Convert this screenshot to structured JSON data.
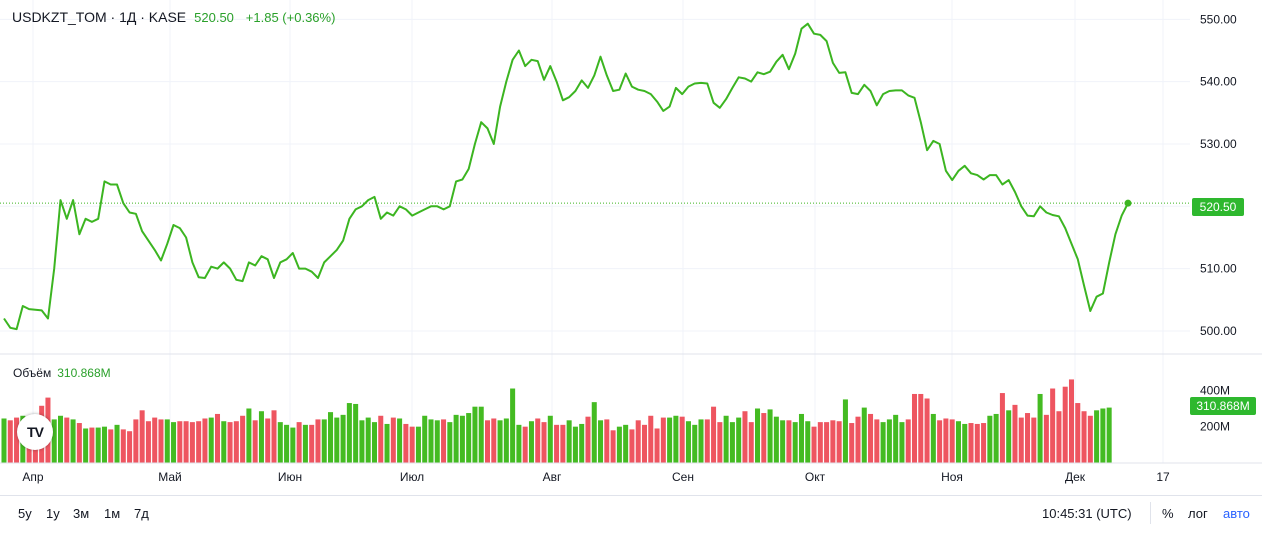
{
  "header": {
    "symbol": "USDKZT_TOM · 1Д · KASE",
    "last": "520.50",
    "change": "+1.85 (+0.36%)"
  },
  "volume_header": {
    "label": "Объём",
    "value": "310.868M"
  },
  "price_tag": "520.50",
  "volume_tag": "310.868M",
  "logo_text": "TV",
  "toolbar": {
    "ranges": [
      "5y",
      "1y",
      "3м",
      "1м",
      "7д"
    ],
    "time": "10:45:31 (UTC)",
    "percent": "%",
    "log": "лог",
    "auto": "авто"
  },
  "colors": {
    "line": "#3cb521",
    "up": "#44bb22",
    "down": "#ee5560",
    "grid": "#f0f3fa"
  },
  "chart_data": [
    {
      "type": "line",
      "title": "USDKZT_TOM · 1Д · KASE",
      "x_ticks": [
        "Апр",
        "Май",
        "Июн",
        "Июл",
        "Авг",
        "Сен",
        "Окт",
        "Ноя",
        "Дек",
        "17"
      ],
      "y_ticks": [
        "550.00",
        "540.00",
        "530.00",
        "520.00",
        "510.00",
        "500.00"
      ],
      "ylim": [
        496.3,
        553.1
      ],
      "series": [
        {
          "values": [
            502,
            500.5,
            500.3,
            504,
            503.5,
            503.4,
            503.3,
            502,
            510,
            521,
            518,
            521,
            515.5,
            518,
            517.5,
            518,
            524,
            523.5,
            523.5,
            520.5,
            519,
            518.8,
            516,
            514.5,
            513,
            511.3,
            514,
            517,
            516.5,
            515,
            511,
            508.6,
            508.5,
            510.3,
            510,
            511,
            510,
            508.2,
            508,
            511,
            510.5,
            512,
            511.5,
            508.5,
            511,
            511.5,
            512.5,
            510,
            510,
            509.5,
            508.5,
            511,
            512,
            513,
            514.5,
            518,
            519.5,
            520,
            521,
            521.5,
            518,
            519,
            518.5,
            520,
            519.5,
            518.5,
            519,
            519.5,
            520,
            520,
            519.5,
            520,
            524,
            524.3,
            526,
            530,
            533.5,
            532.5,
            530,
            536,
            540,
            543.5,
            545,
            542.5,
            543.5,
            543.3,
            540.3,
            542.5,
            540,
            537,
            537.5,
            538.5,
            540.2,
            539,
            541,
            544,
            541,
            538.5,
            538.7,
            541.3,
            539.2,
            538.7,
            538.5,
            538,
            536.8,
            535.3,
            536,
            539,
            538,
            539.2,
            539.7,
            539.8,
            539.7,
            536.6,
            535.8,
            537.2,
            539,
            540.7,
            540.5,
            540,
            541.5,
            541.2,
            541.6,
            543.2,
            544.3,
            542,
            544.5,
            548.5,
            549.3,
            547.7,
            547.5,
            546.5,
            543,
            541.4,
            541.5,
            538.2,
            538,
            539.5,
            538.5,
            536.2,
            538,
            538.5,
            538.6,
            538.6,
            537.8,
            537.4,
            533.5,
            529,
            530.5,
            530,
            525.7,
            524.2,
            525.7,
            526.5,
            525.3,
            525,
            524.3,
            525,
            525,
            523.5,
            524.2,
            522.3,
            520,
            518.5,
            518.4,
            520,
            519,
            518.6,
            518.4,
            516.5,
            514,
            511.5,
            507.3,
            503.2,
            505.5,
            506,
            511,
            515.5,
            518.5,
            520.5
          ]
        }
      ]
    },
    {
      "type": "bar",
      "title": "Объём",
      "y_ticks": [
        "400M",
        "200M"
      ],
      "ylim": [
        0,
        600
      ],
      "series": [
        {
          "values": [
            245,
            235,
            250,
            260,
            245,
            260,
            315,
            360,
            240,
            260,
            250,
            240,
            220,
            190,
            195,
            195,
            200,
            185,
            210,
            185,
            175,
            240,
            290,
            230,
            250,
            240,
            240,
            225,
            230,
            230,
            225,
            230,
            245,
            250,
            270,
            230,
            225,
            230,
            260,
            300,
            235,
            285,
            245,
            290,
            225,
            210,
            195,
            225,
            210,
            210,
            240,
            240,
            280,
            250,
            265,
            330,
            325,
            235,
            250,
            225,
            260,
            215,
            250,
            245,
            215,
            200,
            200,
            260,
            240,
            235,
            240,
            225,
            265,
            260,
            275,
            310,
            310,
            235,
            245,
            235,
            245,
            410,
            210,
            200,
            230,
            245,
            225,
            260,
            210,
            210,
            235,
            200,
            215,
            255,
            335,
            235,
            240,
            180,
            200,
            210,
            185,
            235,
            210,
            260,
            190,
            250,
            250,
            260,
            255,
            230,
            210,
            240,
            240,
            310,
            225,
            260,
            225,
            250,
            285,
            225,
            300,
            275,
            295,
            255,
            235,
            235,
            225,
            270,
            230,
            200,
            225,
            225,
            235,
            230,
            350,
            220,
            255,
            305,
            270,
            240,
            225,
            240,
            265,
            225,
            240,
            380,
            380,
            355,
            270,
            235,
            245,
            240,
            230,
            215,
            220,
            215,
            220,
            260,
            270,
            385,
            290,
            320,
            250,
            275,
            250,
            380,
            265,
            410,
            285,
            420,
            460,
            330,
            285,
            260,
            290,
            300,
            305
          ]
        }
      ]
    }
  ]
}
